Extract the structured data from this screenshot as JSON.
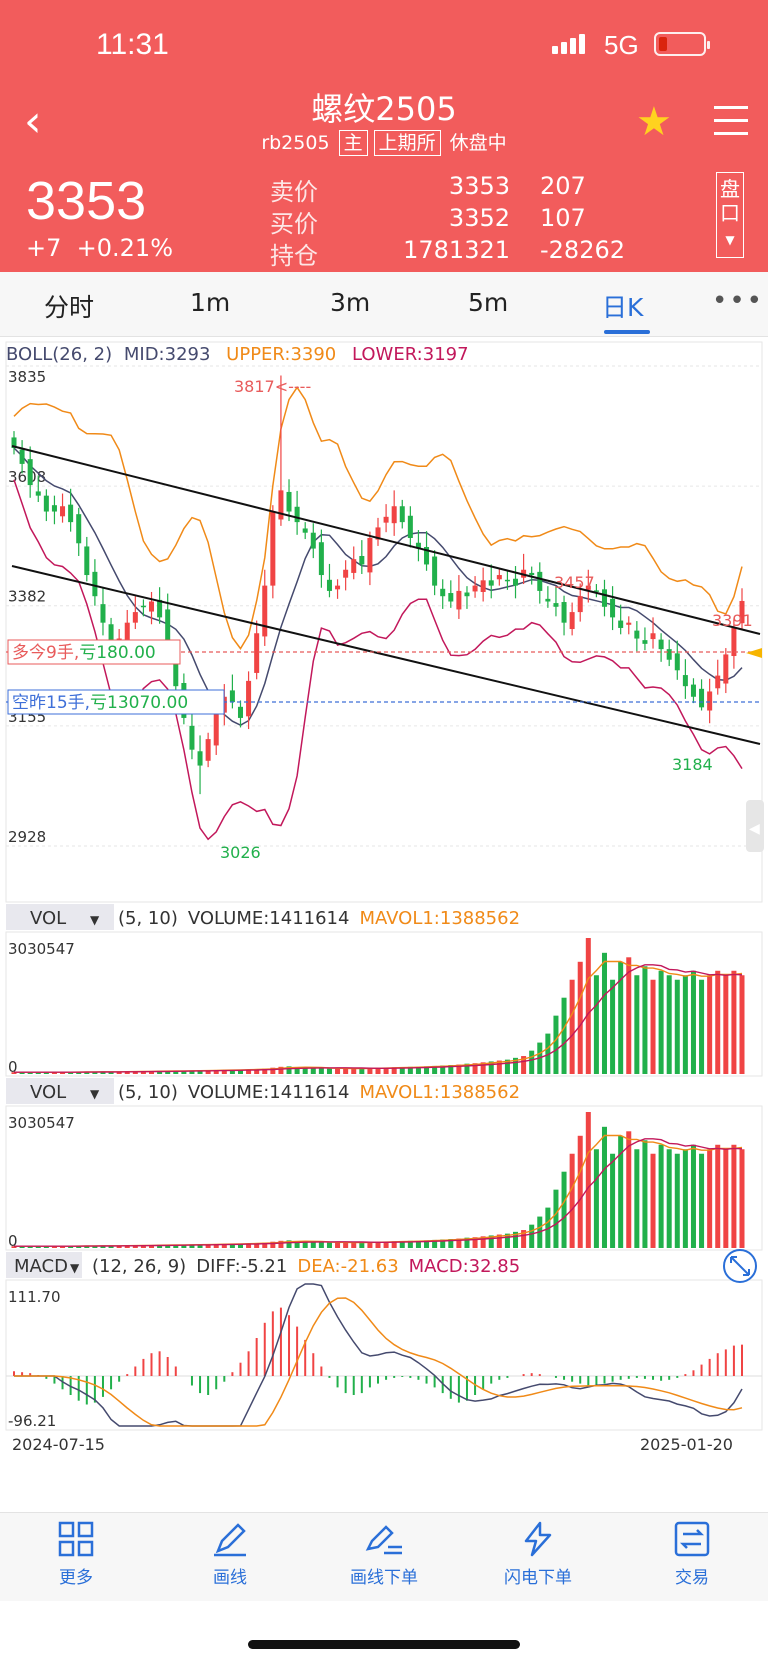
{
  "status_bar": {
    "time": "11:31",
    "network": "5G"
  },
  "header": {
    "title": "螺纹2505",
    "code": "rb2505",
    "main_tag": "主",
    "exchange": "上期所",
    "status": "休盘中",
    "panel_label": "盘口"
  },
  "quote": {
    "last": "3353",
    "change": "+7",
    "change_pct": "+0.21%",
    "rows": [
      {
        "label": "卖价",
        "price": "3353",
        "qty": "207"
      },
      {
        "label": "买价",
        "price": "3352",
        "qty": "107"
      },
      {
        "label": "持仓",
        "price": "1781321",
        "qty": "-28262"
      }
    ]
  },
  "tabs": [
    {
      "label": "分时"
    },
    {
      "label": "1m"
    },
    {
      "label": "3m"
    },
    {
      "label": "5m"
    },
    {
      "label": "日K",
      "active": true
    }
  ],
  "colors": {
    "header": "#f25c5c",
    "up": "#f04444",
    "down": "#21b04b",
    "mid": "#454a6e",
    "upper": "#f08a18",
    "lower": "#c2185b",
    "accent": "#2a6fd8"
  },
  "chart_data": [
    {
      "type": "candlestick",
      "indicator": {
        "name": "BOLL",
        "params": "(26, 2)",
        "mid": "MID:3293",
        "upper": "UPPER:3390",
        "lower": "LOWER:3197"
      },
      "y_labels": [
        "3835",
        "3608",
        "3382",
        "3155",
        "2928"
      ],
      "ylim": [
        2928,
        3835
      ],
      "annotations": {
        "high": "3817<----",
        "low": "3026",
        "peak2": "3457",
        "right_high": "3391",
        "right_low": "3184"
      },
      "positions": {
        "long": {
          "label": "多今9手,",
          "pnl": "亏180.00"
        },
        "short": {
          "label": "空昨15手,",
          "pnl": "亏13070.00"
        }
      },
      "close": [
        3680,
        3650,
        3610,
        3590,
        3560,
        3560,
        3570,
        3540,
        3500,
        3440,
        3400,
        3350,
        3310,
        3320,
        3350,
        3370,
        3380,
        3390,
        3360,
        3300,
        3230,
        3170,
        3110,
        3080,
        3130,
        3180,
        3210,
        3200,
        3170,
        3240,
        3330,
        3420,
        3560,
        3600,
        3560,
        3540,
        3520,
        3490,
        3440,
        3410,
        3420,
        3450,
        3470,
        3460,
        3510,
        3530,
        3550,
        3570,
        3540,
        3510,
        3490,
        3460,
        3420,
        3400,
        3390,
        3410,
        3400,
        3420,
        3430,
        3420,
        3440,
        3430,
        3420,
        3450,
        3440,
        3410,
        3390,
        3380,
        3350,
        3370,
        3400,
        3420,
        3410,
        3380,
        3360,
        3340,
        3350,
        3320,
        3310,
        3330,
        3300,
        3280,
        3260,
        3230,
        3210,
        3190,
        3220,
        3250,
        3290,
        3340,
        3391
      ]
    },
    {
      "type": "bar",
      "indicator": {
        "name": "VOL",
        "params": "(5, 10)",
        "volume": "VOLUME:1411614",
        "mavol": "MAVOL1:1388562"
      },
      "y_labels": [
        "3030547",
        "0"
      ],
      "values": [
        40,
        40,
        40,
        40,
        40,
        40,
        40,
        40,
        50,
        50,
        50,
        50,
        50,
        50,
        60,
        60,
        60,
        60,
        70,
        70,
        70,
        70,
        80,
        80,
        80,
        90,
        90,
        100,
        100,
        100,
        110,
        120,
        140,
        160,
        170,
        150,
        140,
        130,
        130,
        120,
        120,
        120,
        120,
        130,
        130,
        140,
        140,
        150,
        150,
        160,
        160,
        170,
        180,
        190,
        200,
        210,
        230,
        240,
        260,
        280,
        300,
        320,
        360,
        400,
        520,
        700,
        900,
        1300,
        1700,
        2100,
        2500,
        3030,
        2200,
        2700,
        2100,
        2500,
        2600,
        2200,
        2400,
        2100,
        2300,
        2200,
        2100,
        2200,
        2300,
        2100,
        2200,
        2300,
        2200,
        2300,
        2200
      ]
    },
    {
      "type": "bar",
      "indicator": {
        "name": "VOL",
        "params": "(5, 10)",
        "volume": "VOLUME:1411614",
        "mavol": "MAVOL1:1388562"
      },
      "y_labels": [
        "3030547",
        "0"
      ]
    },
    {
      "type": "bar",
      "indicator": {
        "name": "MACD",
        "params": "(12, 26, 9)",
        "diff": "DIFF:-5.21",
        "dea": "DEA:-21.63",
        "macd": "MACD:32.85"
      },
      "y_labels": [
        "111.70",
        "-96.21"
      ],
      "x_labels": [
        "2024-07-15",
        "2025-01-20"
      ],
      "macd": [
        5,
        4,
        3,
        1,
        -3,
        -8,
        -14,
        -20,
        -26,
        -30,
        -28,
        -22,
        -14,
        -6,
        2,
        10,
        18,
        24,
        26,
        20,
        10,
        0,
        -10,
        -18,
        -20,
        -14,
        -6,
        4,
        14,
        26,
        40,
        56,
        68,
        72,
        64,
        52,
        38,
        24,
        10,
        -2,
        -12,
        -18,
        -20,
        -18,
        -12,
        -8,
        -4,
        -2,
        -1,
        -2,
        -4,
        -8,
        -12,
        -18,
        -24,
        -28,
        -26,
        -20,
        -14,
        -8,
        -4,
        -2,
        0,
        2,
        3,
        2,
        0,
        -2,
        -4,
        -6,
        -8,
        -10,
        -9,
        -8,
        -6,
        -4,
        -3,
        -2,
        -3,
        -4,
        -5,
        -4,
        -2,
        2,
        6,
        12,
        18,
        24,
        28,
        32,
        33
      ]
    }
  ],
  "toolbar": [
    {
      "label": "更多"
    },
    {
      "label": "画线"
    },
    {
      "label": "画线下单"
    },
    {
      "label": "闪电下单"
    },
    {
      "label": "交易"
    }
  ]
}
